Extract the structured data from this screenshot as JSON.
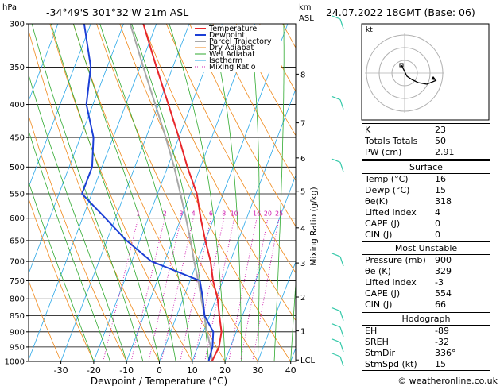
{
  "header": {
    "hpa_label": "hPa",
    "location": "-34°49'S  301°32'W  21m  ASL",
    "km_label": "km",
    "asl_label": "ASL",
    "datetime": "24.07.2022  18GMT  (Base: 06)",
    "mixing_ratio_axis": "Mixing Ratio (g/kg)",
    "footer": "© weatheronline.co.uk"
  },
  "chart_data": {
    "type": "line",
    "xlabel": "Dewpoint / Temperature (°C)",
    "ylabel": "hPa",
    "xlim": [
      -35,
      40
    ],
    "pressure_ticks": [
      300,
      350,
      400,
      450,
      500,
      550,
      600,
      650,
      700,
      750,
      800,
      850,
      900,
      950,
      1000
    ],
    "temperature_ticks": [
      -30,
      -20,
      -10,
      0,
      10,
      20,
      30,
      40
    ],
    "km_ticks": [
      {
        "label": "8",
        "p": 359
      },
      {
        "label": "7",
        "p": 427
      },
      {
        "label": "6",
        "p": 484
      },
      {
        "label": "5",
        "p": 545
      },
      {
        "label": "4",
        "p": 621
      },
      {
        "label": "3",
        "p": 704
      },
      {
        "label": "2",
        "p": 795
      },
      {
        "label": "1",
        "p": 897
      },
      {
        "label": "LCL",
        "p": 995
      }
    ],
    "mixing_ratio_labels": [
      "1",
      "2",
      "3",
      "4",
      "6",
      "8",
      "10",
      "16",
      "20",
      "25"
    ],
    "legend": [
      "Temperature",
      "Dewpoint",
      "Parcel Trajectory",
      "Dry Adiabat",
      "Wet Adiabat",
      "Isotherm",
      "Mixing Ratio"
    ],
    "colors": {
      "temperature": "#e8262a",
      "dewpoint": "#1c3fd6",
      "parcel": "#a8a8a8",
      "dry_adiabat": "#f08a1c",
      "wet_adiabat": "#2faa2f",
      "isotherm": "#2aa7e8",
      "mixing_ratio": "#d01cb0",
      "wind": "#35c9a9"
    },
    "series": [
      {
        "name": "Temperature",
        "points": [
          {
            "p": 1000,
            "t": 16
          },
          {
            "p": 950,
            "t": 16.5
          },
          {
            "p": 900,
            "t": 15.5
          },
          {
            "p": 850,
            "t": 13
          },
          {
            "p": 800,
            "t": 10.5
          },
          {
            "p": 750,
            "t": 7
          },
          {
            "p": 700,
            "t": 4
          },
          {
            "p": 650,
            "t": 0
          },
          {
            "p": 600,
            "t": -4
          },
          {
            "p": 550,
            "t": -8
          },
          {
            "p": 500,
            "t": -14
          },
          {
            "p": 450,
            "t": -20
          },
          {
            "p": 400,
            "t": -27
          },
          {
            "p": 350,
            "t": -35
          },
          {
            "p": 300,
            "t": -44
          }
        ]
      },
      {
        "name": "Dewpoint",
        "points": [
          {
            "p": 1000,
            "t": 15
          },
          {
            "p": 950,
            "t": 14.5
          },
          {
            "p": 900,
            "t": 13
          },
          {
            "p": 850,
            "t": 8.5
          },
          {
            "p": 800,
            "t": 6
          },
          {
            "p": 750,
            "t": 3
          },
          {
            "p": 700,
            "t": -14
          },
          {
            "p": 650,
            "t": -24
          },
          {
            "p": 600,
            "t": -33
          },
          {
            "p": 550,
            "t": -43
          },
          {
            "p": 500,
            "t": -43
          },
          {
            "p": 450,
            "t": -46
          },
          {
            "p": 400,
            "t": -52
          },
          {
            "p": 350,
            "t": -55
          },
          {
            "p": 300,
            "t": -62
          }
        ]
      },
      {
        "name": "Parcel Trajectory",
        "points": [
          {
            "p": 1000,
            "t": 16
          },
          {
            "p": 950,
            "t": 14
          },
          {
            "p": 900,
            "t": 11
          },
          {
            "p": 850,
            "t": 8.5
          },
          {
            "p": 800,
            "t": 5.5
          },
          {
            "p": 750,
            "t": 2.5
          },
          {
            "p": 700,
            "t": -1
          },
          {
            "p": 650,
            "t": -4.5
          },
          {
            "p": 600,
            "t": -8.5
          },
          {
            "p": 550,
            "t": -13
          },
          {
            "p": 500,
            "t": -18
          },
          {
            "p": 450,
            "t": -24
          },
          {
            "p": 400,
            "t": -31
          },
          {
            "p": 350,
            "t": -39
          },
          {
            "p": 300,
            "t": -48
          }
        ]
      }
    ]
  },
  "hodograph": {
    "label": "kt"
  },
  "indices": [
    {
      "key": "K",
      "value": "23"
    },
    {
      "key": "Totals Totals",
      "value": "50"
    },
    {
      "key": "PW (cm)",
      "value": "2.91"
    }
  ],
  "surface": {
    "title": "Surface",
    "rows": [
      {
        "key": "Temp (°C)",
        "value": "16"
      },
      {
        "key": "Dewp (°C)",
        "value": "15"
      },
      {
        "key": "θe(K)",
        "value": "318"
      },
      {
        "key": "Lifted Index",
        "value": "4"
      },
      {
        "key": "CAPE (J)",
        "value": "0"
      },
      {
        "key": "CIN (J)",
        "value": "0"
      }
    ]
  },
  "most_unstable": {
    "title": "Most Unstable",
    "rows": [
      {
        "key": "Pressure (mb)",
        "value": "900"
      },
      {
        "key": "θe (K)",
        "value": "329"
      },
      {
        "key": "Lifted Index",
        "value": "-3"
      },
      {
        "key": "CAPE (J)",
        "value": "554"
      },
      {
        "key": "CIN (J)",
        "value": "66"
      }
    ]
  },
  "hodograph_table": {
    "title": "Hodograph",
    "rows": [
      {
        "key": "EH",
        "value": "-89"
      },
      {
        "key": "SREH",
        "value": "-32"
      },
      {
        "key": "StmDir",
        "value": "336°"
      },
      {
        "key": "StmSpd (kt)",
        "value": "15"
      }
    ]
  }
}
